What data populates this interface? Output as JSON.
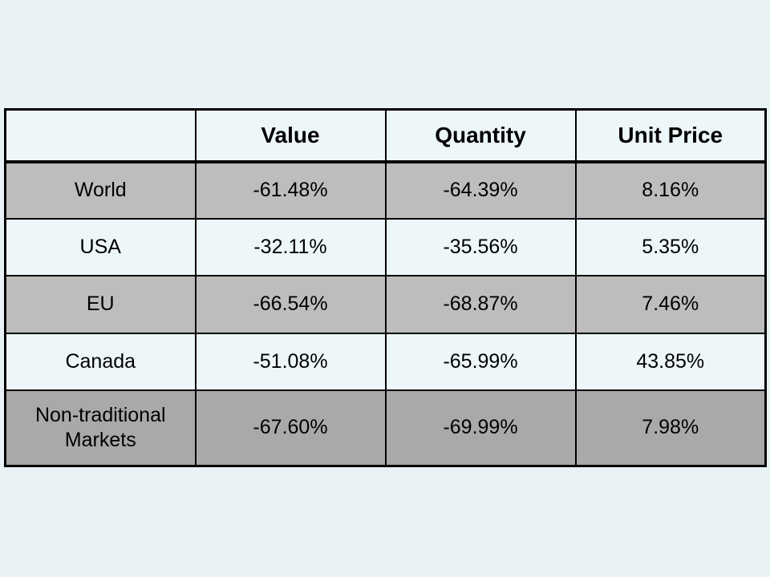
{
  "colors": {
    "slide_background": "#e9f2f5",
    "band_light": "#edf6f8",
    "band_gray": "#bdbdbd",
    "band_dark_gray": "#a9a9a9",
    "border": "#000000",
    "text": "#000000"
  },
  "chart_data": {
    "type": "table",
    "columns": [
      "",
      "Value",
      "Quantity",
      "Unit Price"
    ],
    "rows": [
      [
        "World",
        "-61.48%",
        "-64.39%",
        "8.16%"
      ],
      [
        "USA",
        "-32.11%",
        "-35.56%",
        "5.35%"
      ],
      [
        "EU",
        "-66.54%",
        "-68.87%",
        "7.46%"
      ],
      [
        "Canada",
        "-51.08%",
        "-65.99%",
        "43.85%"
      ],
      [
        "Non-traditional Markets",
        "-67.60%",
        "-69.99%",
        "7.98%"
      ]
    ],
    "layout": {
      "banded_rows": true,
      "header_bold": true,
      "last_row_darker": true,
      "grid": true
    }
  }
}
